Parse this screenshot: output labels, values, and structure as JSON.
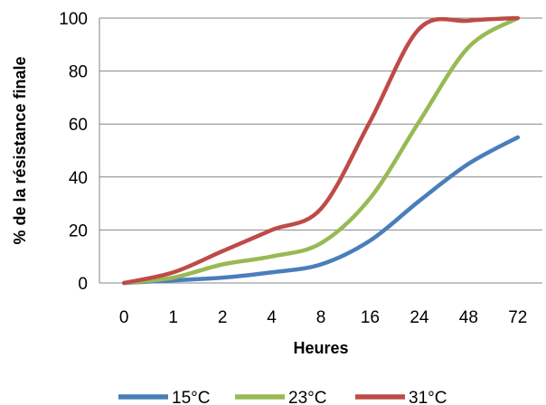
{
  "chart_data": {
    "type": "line",
    "title": "",
    "xlabel": "Heures",
    "ylabel": "% de la résistance finale",
    "categories": [
      "0",
      "1",
      "2",
      "4",
      "8",
      "16",
      "24",
      "48",
      "72"
    ],
    "ylim": [
      0,
      100
    ],
    "yticks": [
      0,
      20,
      40,
      60,
      80,
      100
    ],
    "grid": true,
    "legend_position": "bottom",
    "series": [
      {
        "name": "15°C",
        "color": "#4a7ebb",
        "values": [
          0,
          1,
          2,
          4,
          7,
          16,
          31,
          45,
          55
        ]
      },
      {
        "name": "23°C",
        "color": "#98b954",
        "values": [
          0,
          2,
          7,
          10,
          15,
          32,
          61,
          89,
          100
        ]
      },
      {
        "name": "31°C",
        "color": "#be4b48",
        "values": [
          0,
          4,
          12,
          20,
          28,
          61,
          96,
          99,
          100
        ]
      }
    ]
  }
}
